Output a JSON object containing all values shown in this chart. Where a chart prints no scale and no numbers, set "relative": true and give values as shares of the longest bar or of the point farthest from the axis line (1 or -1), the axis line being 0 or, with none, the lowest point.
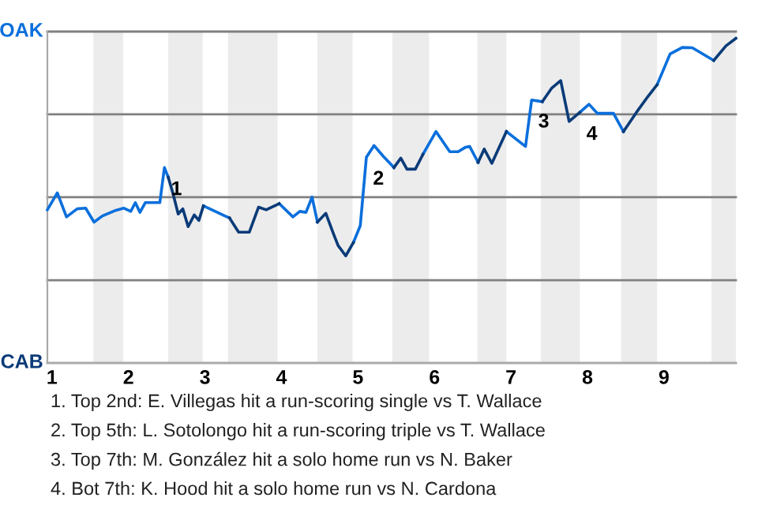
{
  "chart_data": {
    "type": "line",
    "relative": true,
    "xlim": [
      0.94,
      9.94
    ],
    "xticks": [
      1,
      2,
      3,
      4,
      5,
      6,
      7,
      8,
      9
    ],
    "marker": "none",
    "line_style": "solid",
    "series": [
      {
        "color": "#0a6fdc",
        "x": [
          0.94,
          1.07,
          1.19,
          1.33,
          1.44,
          1.55,
          1.66,
          1.82,
          1.94,
          2.03,
          2.09,
          2.15,
          2.22,
          2.41,
          2.47,
          2.52,
          null,
          2.98,
          3.09,
          3.26,
          3.32,
          null,
          3.97,
          4.15,
          4.24,
          4.32,
          4.4,
          4.47,
          null,
          4.94,
          5.03,
          5.11,
          5.21,
          5.33,
          5.47,
          null,
          5.85,
          6.02,
          6.2,
          6.31,
          6.4,
          6.46,
          6.57,
          null,
          6.94,
          7.19,
          7.27,
          7.41,
          null,
          7.9,
          8.02,
          8.13,
          8.34,
          8.47,
          null,
          8.91,
          9.08,
          9.24,
          9.37,
          9.65
        ],
        "values": [
          0.472,
          0.524,
          0.45,
          0.475,
          0.477,
          0.434,
          0.453,
          0.469,
          0.477,
          0.467,
          0.494,
          0.464,
          0.494,
          0.494,
          0.602,
          0.572,
          null,
          0.484,
          0.472,
          0.453,
          0.447,
          null,
          0.491,
          0.45,
          0.467,
          0.464,
          0.511,
          0.434,
          null,
          0.371,
          0.423,
          0.634,
          0.67,
          0.637,
          0.602,
          null,
          0.643,
          0.713,
          0.651,
          0.651,
          0.664,
          0.667,
          0.618,
          null,
          0.713,
          0.667,
          0.81,
          0.805,
          null,
          0.772,
          0.797,
          0.769,
          0.769,
          0.713,
          null,
          0.857,
          0.952,
          0.972,
          0.971,
          0.932
        ]
      },
      {
        "color": "#0b3b78",
        "x": [
          2.52,
          2.58,
          2.65,
          2.71,
          2.78,
          2.86,
          2.92,
          2.98,
          null,
          3.32,
          3.44,
          3.58,
          3.7,
          3.8,
          3.97,
          null,
          4.47,
          4.58,
          4.68,
          4.74,
          4.84,
          4.94,
          null,
          5.47,
          5.56,
          5.64,
          5.75,
          5.85,
          null,
          6.57,
          6.65,
          6.75,
          6.94,
          null,
          7.41,
          7.53,
          7.65,
          7.76,
          7.9,
          null,
          8.47,
          8.64,
          8.79,
          8.91,
          null,
          9.65,
          9.81,
          9.94
        ],
        "values": [
          0.572,
          0.524,
          0.459,
          0.475,
          0.42,
          0.456,
          0.439,
          0.484,
          null,
          0.447,
          0.403,
          0.403,
          0.48,
          0.472,
          0.491,
          null,
          0.434,
          0.461,
          0.398,
          0.362,
          0.33,
          0.371,
          null,
          0.602,
          0.631,
          0.597,
          0.597,
          0.643,
          null,
          0.618,
          0.659,
          0.615,
          0.713,
          null,
          0.805,
          0.846,
          0.87,
          0.744,
          0.772,
          null,
          0.713,
          0.772,
          0.821,
          0.857,
          null,
          0.932,
          0.977,
          1
        ]
      }
    ],
    "ref_lines": [
      {
        "axis": "y",
        "value": 0,
        "label": "CAB",
        "color": "#aaaaaa"
      },
      {
        "axis": "y",
        "value": 0.255,
        "color": "#808080"
      },
      {
        "axis": "y",
        "value": 0.511,
        "color": "#808080"
      },
      {
        "axis": "y",
        "value": 0.766,
        "color": "#808080"
      },
      {
        "axis": "y",
        "value": 1.021,
        "label": "OAK",
        "color": "#808080"
      }
    ],
    "bands": [
      {
        "axis": "x",
        "from": 1.54,
        "to": 1.93,
        "color": "#ececec"
      },
      {
        "axis": "x",
        "from": 2.52,
        "to": 2.97,
        "color": "#ececec"
      },
      {
        "axis": "x",
        "from": 3.3,
        "to": 3.95,
        "color": "#ececec"
      },
      {
        "axis": "x",
        "from": 4.47,
        "to": 4.93,
        "color": "#ececec"
      },
      {
        "axis": "x",
        "from": 5.45,
        "to": 5.93,
        "color": "#ececec"
      },
      {
        "axis": "x",
        "from": 6.56,
        "to": 6.94,
        "color": "#ececec"
      },
      {
        "axis": "x",
        "from": 7.39,
        "to": 7.9,
        "color": "#ececec"
      },
      {
        "axis": "x",
        "from": 8.44,
        "to": 8.91,
        "color": "#ececec"
      },
      {
        "axis": "x",
        "from": 9.62,
        "to": 9.94,
        "color": "#ececec"
      }
    ],
    "annotations": [
      {
        "text": "1",
        "x": 2.47,
        "y": 0.602
      },
      {
        "text": "2",
        "x": 5.11,
        "y": 0.634
      },
      {
        "text": "3",
        "x": 7.27,
        "y": 0.81
      },
      {
        "text": "4",
        "x": 7.9,
        "y": 0.772
      },
      "1. Top 2nd: E. Villegas hit a run-scoring single vs T. Wallace",
      "2. Top 5th: L. Sotolongo hit a run-scoring triple vs T. Wallace",
      "3. Top 7th: M. González hit a solo home run vs N. Baker",
      "4. Bot 7th: K. Hood hit a solo home run vs N. Cardona"
    ]
  }
}
